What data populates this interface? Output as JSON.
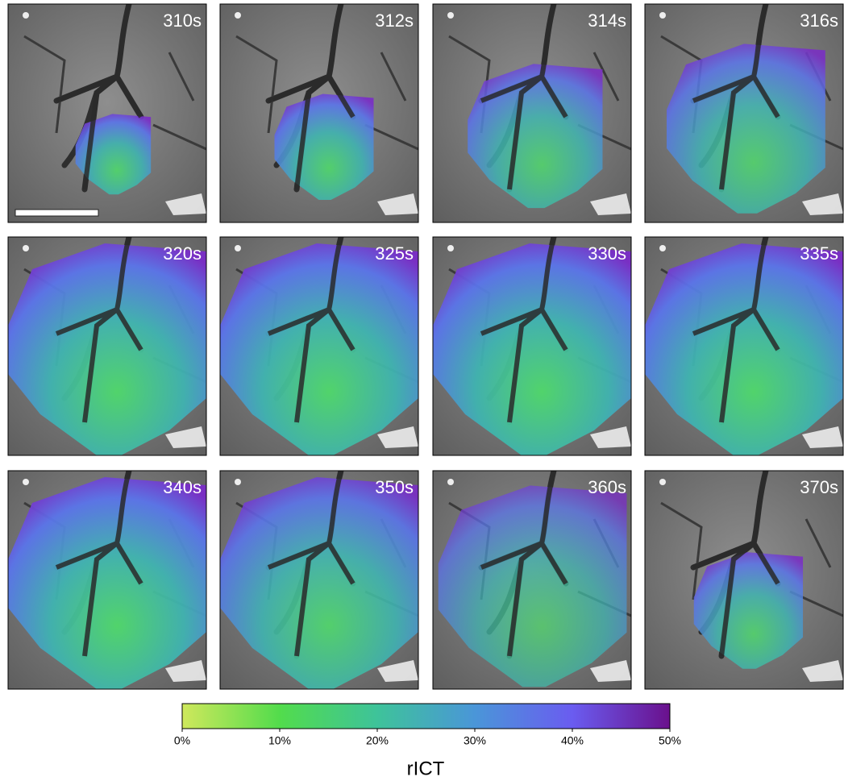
{
  "panels": [
    {
      "label": "310s"
    },
    {
      "label": "312s"
    },
    {
      "label": "314s"
    },
    {
      "label": "316s"
    },
    {
      "label": "320s"
    },
    {
      "label": "325s"
    },
    {
      "label": "330s"
    },
    {
      "label": "335s"
    },
    {
      "label": "340s"
    },
    {
      "label": "350s"
    },
    {
      "label": "360s"
    },
    {
      "label": "370s"
    }
  ],
  "colorbar": {
    "label": "rICT",
    "lim": [
      0,
      50
    ],
    "ticks": [
      {
        "value": 0,
        "label": "0%"
      },
      {
        "value": 10,
        "label": "10%"
      },
      {
        "value": 20,
        "label": "20%"
      },
      {
        "value": 30,
        "label": "30%"
      },
      {
        "value": 40,
        "label": "40%"
      },
      {
        "value": 50,
        "label": "50%"
      }
    ],
    "colors": [
      "#cfe85c",
      "#52dc4c",
      "#3ec39a",
      "#4a96d8",
      "#6a5cf0",
      "#6a108c"
    ]
  }
}
